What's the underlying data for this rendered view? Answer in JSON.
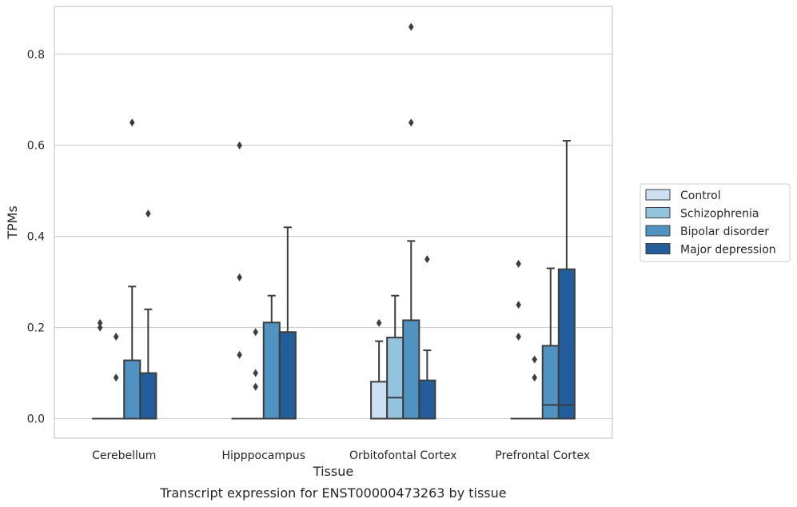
{
  "caption": "Transcript expression for ENST00000473263 by tissue",
  "chart_data": {
    "type": "box",
    "title": "",
    "xlabel": "Tissue",
    "ylabel": "TPMs",
    "ylim": [
      -0.043,
      0.905
    ],
    "yticks": [
      0.0,
      0.2,
      0.4,
      0.6,
      0.8
    ],
    "ytick_labels": [
      "0.0",
      "0.2",
      "0.4",
      "0.6",
      "0.8"
    ],
    "grid": true,
    "legend_position": "right",
    "categories": [
      "Cerebellum",
      "Hipppocampus",
      "Orbitofontal Cortex",
      "Prefrontal Cortex"
    ],
    "series": [
      {
        "name": "Control",
        "color": "#cde0f1",
        "boxes": [
          {
            "q1": 0,
            "median": 0,
            "q3": 0,
            "whisker_low": 0,
            "whisker_high": 0,
            "outliers": [
              0.21,
              0.2
            ]
          },
          {
            "q1": 0,
            "median": 0,
            "q3": 0,
            "whisker_low": 0,
            "whisker_high": 0,
            "outliers": [
              0.6,
              0.31,
              0.14
            ]
          },
          {
            "q1": 0,
            "median": 0,
            "q3": 0.081,
            "whisker_low": 0,
            "whisker_high": 0.17,
            "outliers": [
              0.21
            ]
          },
          {
            "q1": 0,
            "median": 0,
            "q3": 0,
            "whisker_low": 0,
            "whisker_high": 0,
            "outliers": [
              0.34,
              0.25,
              0.18
            ]
          }
        ]
      },
      {
        "name": "Schizophrenia",
        "color": "#93c4de",
        "boxes": [
          {
            "q1": 0,
            "median": 0,
            "q3": 0,
            "whisker_low": 0,
            "whisker_high": 0,
            "outliers": [
              0.18,
              0.09
            ]
          },
          {
            "q1": 0,
            "median": 0,
            "q3": 0,
            "whisker_low": 0,
            "whisker_high": 0,
            "outliers": [
              0.19,
              0.1,
              0.07
            ]
          },
          {
            "q1": 0,
            "median": 0.046,
            "q3": 0.178,
            "whisker_low": 0,
            "whisker_high": 0.27,
            "outliers": []
          },
          {
            "q1": 0,
            "median": 0,
            "q3": 0,
            "whisker_low": 0,
            "whisker_high": 0,
            "outliers": [
              0.13,
              0.09
            ]
          }
        ]
      },
      {
        "name": "Bipolar disorder",
        "color": "#4f93c3",
        "boxes": [
          {
            "q1": 0,
            "median": 0,
            "q3": 0.128,
            "whisker_low": 0,
            "whisker_high": 0.29,
            "outliers": [
              0.65
            ]
          },
          {
            "q1": 0,
            "median": 0,
            "q3": 0.211,
            "whisker_low": 0,
            "whisker_high": 0.27,
            "outliers": []
          },
          {
            "q1": 0,
            "median": 0,
            "q3": 0.216,
            "whisker_low": 0,
            "whisker_high": 0.39,
            "outliers": [
              0.86,
              0.65
            ]
          },
          {
            "q1": 0,
            "median": 0.03,
            "q3": 0.16,
            "whisker_low": 0,
            "whisker_high": 0.33,
            "outliers": []
          }
        ]
      },
      {
        "name": "Major depression",
        "color": "#225e9b",
        "boxes": [
          {
            "q1": 0,
            "median": 0,
            "q3": 0.1,
            "whisker_low": 0,
            "whisker_high": 0.24,
            "outliers": [
              0.45
            ]
          },
          {
            "q1": 0,
            "median": 0,
            "q3": 0.19,
            "whisker_low": 0,
            "whisker_high": 0.42,
            "outliers": []
          },
          {
            "q1": 0,
            "median": 0,
            "q3": 0.084,
            "whisker_low": 0,
            "whisker_high": 0.15,
            "outliers": [
              0.35
            ]
          },
          {
            "q1": 0,
            "median": 0.03,
            "q3": 0.328,
            "whisker_low": 0,
            "whisker_high": 0.61,
            "outliers": []
          }
        ]
      }
    ]
  }
}
